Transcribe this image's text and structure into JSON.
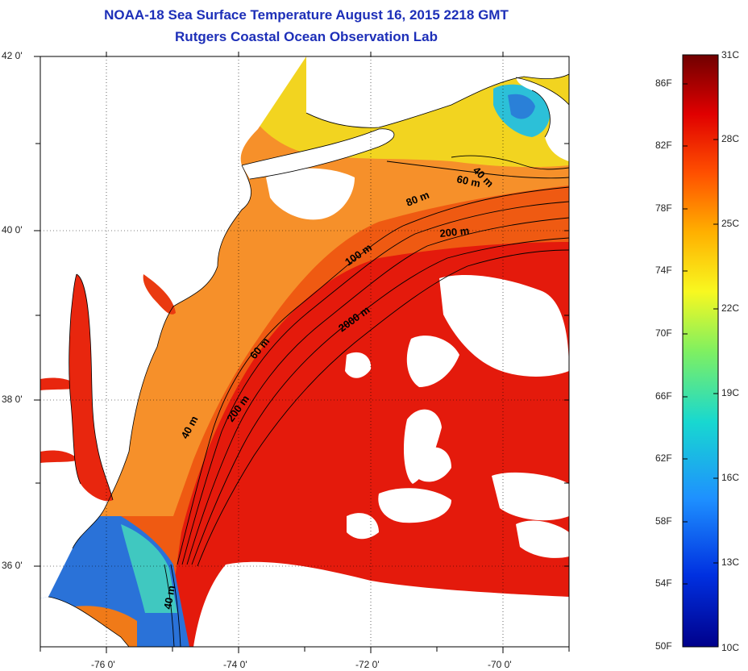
{
  "title": {
    "line1": "NOAA-18 Sea Surface Temperature August 16, 2015 2218 GMT",
    "line2": "Rutgers Coastal Ocean Observation Lab"
  },
  "map": {
    "lat_labels": [
      "42 0'",
      "40 0'",
      "38 0'",
      "36 0'"
    ],
    "lon_labels": [
      "-76 0'",
      "-74 0'",
      "-72 0'",
      "-70 0'"
    ],
    "contours": [
      "40 m",
      "60 m",
      "80 m",
      "200 m",
      "100 m",
      "2000 m",
      "60 m",
      "200 m",
      "40 m",
      "40 m"
    ],
    "colors": {
      "land": "#ffffff",
      "cloud": "#ffffff",
      "offshore_warm": "#e8180c",
      "shelf": "#f06a10",
      "nearshore": "#f7a020",
      "cool_north": "#f0e020",
      "cold_patch": "#26b8d8",
      "cold_south": "#1d57d6"
    }
  },
  "colorbar": {
    "fahrenheit": [
      "86F",
      "82F",
      "78F",
      "74F",
      "70F",
      "66F",
      "62F",
      "58F",
      "54F",
      "50F"
    ],
    "celsius": [
      "31C",
      "28C",
      "25C",
      "22C",
      "19C",
      "16C",
      "13C",
      "10C"
    ],
    "range_c": [
      10,
      31
    ]
  }
}
